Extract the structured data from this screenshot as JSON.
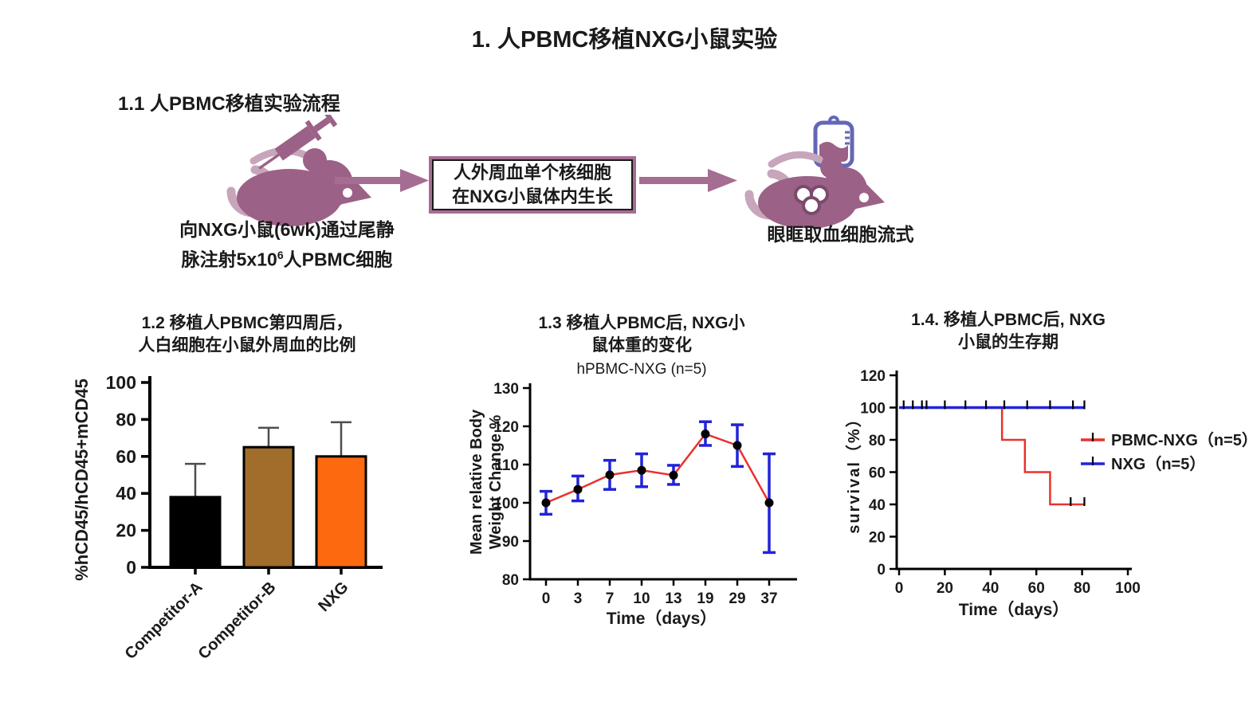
{
  "page": {
    "title": "1. 人PBMC移植NXG小鼠实验"
  },
  "flow": {
    "heading": "1.1 人PBMC移植实验流程",
    "step1_caption_line1": "向NXG小鼠(6wk)通过尾静",
    "step1_caption_line2_pre": "脉注射5x10",
    "step1_caption_sup": "6",
    "step1_caption_line2_post": "人PBMC细胞",
    "box_line1": "人外周血单个核细胞",
    "box_line2": "在NXG小鼠体内生长",
    "step3_caption": "眼眶取血细胞流式",
    "icons": {
      "step1": "mouse-with-syringe-icon",
      "arrow": "flow-arrow-icon",
      "step3": "mouse-with-blood-bag-icon"
    },
    "colors": {
      "mauve": "#9c6187",
      "mauve_light": "#c7a6bc",
      "arrow": "#a56d92",
      "bag_outline": "#6467b5"
    }
  },
  "chart_data": [
    {
      "id": "engraftment-bar",
      "type": "bar",
      "title_line1": "1.2 移植人PBMC第四周后，",
      "title_line2": "人白细胞在小鼠外周血的比例",
      "ylabel": "%hCD45/hCD45+mCD45",
      "categories": [
        "Competitor-A",
        "Competitor-B",
        "NXG"
      ],
      "values": [
        38,
        65,
        60
      ],
      "errors_plus": [
        18,
        10.5,
        18.5
      ],
      "bar_colors": [
        "#000000",
        "#a06d2a",
        "#fd690f"
      ],
      "error_color": "#4d4d4d",
      "ylim": [
        0,
        100
      ],
      "yticks": [
        0,
        20,
        40,
        60,
        80,
        100
      ],
      "grid": false
    },
    {
      "id": "body-weight-line",
      "type": "line",
      "title_line1": "1.3 移植人PBMC后, NXG小",
      "title_line2": "鼠体重的变化",
      "subtitle": "hPBMC-NXG (n=5)",
      "xlabel": "Time（days）",
      "ylabel_line1": "Mean relative Body",
      "ylabel_line2": "Weight Change %",
      "x_categories": [
        "0",
        "3",
        "7",
        "10",
        "13",
        "19",
        "29",
        "37"
      ],
      "values": [
        100,
        103.5,
        107.3,
        108.5,
        107.2,
        118,
        115,
        100
      ],
      "err_low": [
        3,
        3,
        3.8,
        4.3,
        2.4,
        3,
        5.5,
        13
      ],
      "err_high": [
        3,
        3.5,
        3.8,
        4.3,
        2.6,
        3.2,
        5.4,
        12.8
      ],
      "ylim": [
        80,
        130
      ],
      "yticks": [
        80,
        90,
        100,
        110,
        120,
        130
      ],
      "line_color": "#e8322d",
      "error_color": "#2323d7",
      "marker_color": "#000000",
      "grid": false
    },
    {
      "id": "survival-step",
      "type": "step",
      "title_line1": "1.4. 移植人PBMC后, NXG",
      "title_line2": "小鼠的生存期",
      "xlabel": "Time（days）",
      "ylabel": "survival（%）",
      "xlim": [
        0,
        100
      ],
      "xticks": [
        0,
        20,
        40,
        60,
        80,
        100
      ],
      "ylim": [
        0,
        120
      ],
      "yticks": [
        0,
        20,
        40,
        60,
        80,
        100,
        120
      ],
      "censor_color": "#000000",
      "legend_position": "right",
      "series": [
        {
          "name": "PBMC-NXG（n=5）",
          "color": "#e8322d",
          "points": [
            [
              0,
              100
            ],
            [
              45,
              100
            ],
            [
              45,
              80
            ],
            [
              55,
              80
            ],
            [
              55,
              60
            ],
            [
              66,
              60
            ],
            [
              66,
              40
            ],
            [
              81,
              40
            ]
          ],
          "censors": [
            [
              75,
              40
            ],
            [
              81,
              40
            ]
          ]
        },
        {
          "name": "NXG（n=5）",
          "color": "#2323d7",
          "points": [
            [
              0,
              100
            ],
            [
              81,
              100
            ]
          ],
          "censors": [
            [
              2,
              100
            ],
            [
              6,
              100
            ],
            [
              10,
              100
            ],
            [
              12,
              100
            ],
            [
              20,
              100
            ],
            [
              29,
              100
            ],
            [
              38,
              100
            ],
            [
              46,
              100
            ],
            [
              56,
              100
            ],
            [
              66,
              100
            ],
            [
              76,
              100
            ],
            [
              81,
              100
            ]
          ]
        }
      ],
      "grid": false
    }
  ]
}
